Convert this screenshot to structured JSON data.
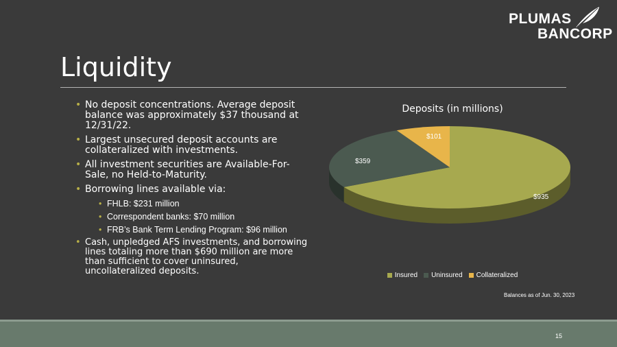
{
  "logo": {
    "line1": "PLUMAS",
    "line2": "BANCORP"
  },
  "title": "Liquidity",
  "bullets": [
    {
      "text": "No deposit concentrations. Average deposit balance was approximately $37 thousand at 12/31/22."
    },
    {
      "text": "Largest unsecured deposit accounts are collateralized with investments."
    },
    {
      "text": "All investment securities are Available-For-Sale, no Held-to-Maturity."
    },
    {
      "text": "Borrowing lines available via:",
      "sub": [
        "FHLB: $231 million",
        "Correspondent banks: $70 million",
        "FRB’s Bank Term Lending Program: $96 million"
      ]
    },
    {
      "text": "Cash, unpledged AFS investments, and borrowing lines totaling more than $690 million are more than sufficient to cover uninsured, uncollateralized deposits."
    }
  ],
  "chart_data": {
    "type": "pie",
    "title": "Deposits (in millions)",
    "categories": [
      "Insured",
      "Uninsured",
      "Collateralized"
    ],
    "values": [
      935,
      359,
      101
    ],
    "data_labels": [
      "$935",
      "$359",
      "$101"
    ],
    "colors": [
      "#a7a94f",
      "#4b5a50",
      "#e8b54a"
    ],
    "legend": "bottom"
  },
  "footnote": "Balances as of Jun. 30, 2023",
  "page_number": "15"
}
